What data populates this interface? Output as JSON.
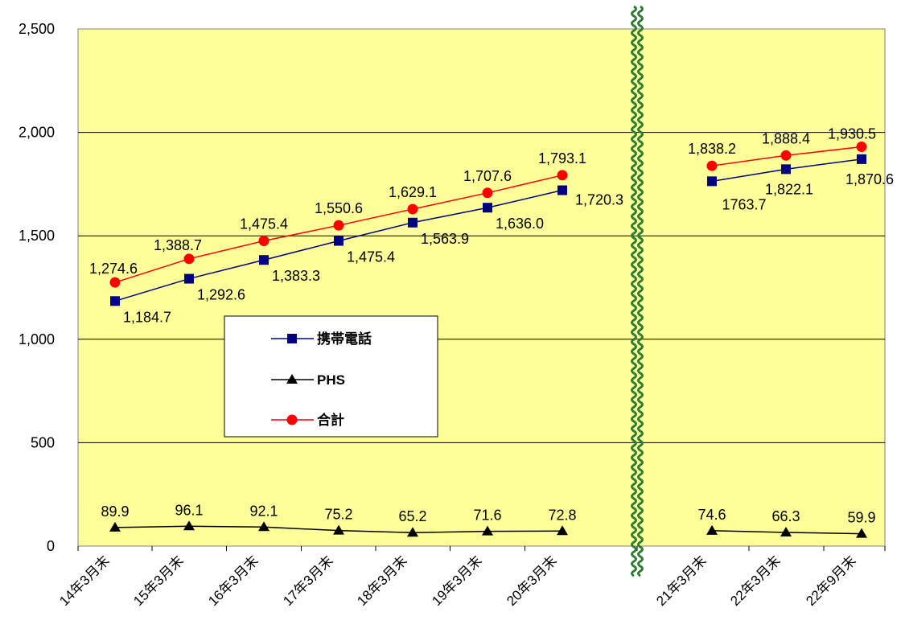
{
  "chart_data": {
    "type": "line",
    "categories": [
      "14年3月末",
      "15年3月末",
      "16年3月末",
      "17年3月末",
      "18年3月末",
      "19年3月末",
      "20年3月末",
      "21年3月末",
      "22年3月末",
      "22年9月末"
    ],
    "series": [
      {
        "name": "携帯電話",
        "values": [
          1184.7,
          1292.6,
          1383.3,
          1475.4,
          1563.9,
          1636.0,
          1720.3,
          1763.7,
          1822.1,
          1870.6
        ],
        "labels": [
          "1,184.7",
          "1,292.6",
          "1,383.3",
          "1,475.4",
          "1,563.9",
          "1,636.0",
          "1,720.3",
          "1763.7",
          "1,822.1",
          "1,870.6"
        ],
        "color": "#000080",
        "marker": "square"
      },
      {
        "name": "PHS",
        "values": [
          89.9,
          96.1,
          92.1,
          75.2,
          65.2,
          71.6,
          72.8,
          74.6,
          66.3,
          59.9
        ],
        "labels": [
          "89.9",
          "96.1",
          "92.1",
          "75.2",
          "65.2",
          "71.6",
          "72.8",
          "74.6",
          "66.3",
          "59.9"
        ],
        "color": "#000000",
        "marker": "triangle"
      },
      {
        "name": "合計",
        "values": [
          1274.6,
          1388.7,
          1475.4,
          1550.6,
          1629.1,
          1707.6,
          1793.1,
          1838.2,
          1888.4,
          1930.5
        ],
        "labels": [
          "1,274.6",
          "1,388.7",
          "1,475.4",
          "1,550.6",
          "1,629.1",
          "1,707.6",
          "1,793.1",
          "1,838.2",
          "1,888.4",
          "1,930.5"
        ],
        "color": "#ff0000",
        "marker": "circle"
      }
    ],
    "yticks": [
      "0",
      "500",
      "1,000",
      "1,500",
      "2,000",
      "2,500"
    ],
    "ylim": [
      0,
      2500
    ],
    "grid": true,
    "axis_break_after_category": "20年3月末",
    "legend_position": "inside-left",
    "colors": {
      "plot_bg": "#ffff99",
      "break_mark": "#2e7d32"
    }
  }
}
